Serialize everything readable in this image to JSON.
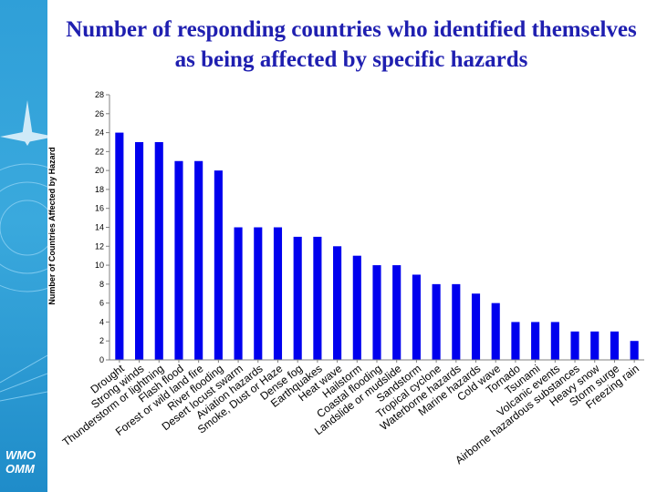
{
  "colors": {
    "bar": "#0000ee",
    "sidebar": "#2f9fd8",
    "title": "#1f1fb0"
  },
  "logo": {
    "line1": "WMO",
    "line2": "OMM"
  },
  "chart_data": {
    "type": "bar",
    "title": "Number of responding countries who identified themselves as being affected by specific hazards",
    "xlabel": "",
    "ylabel": "Number of Countries Affected by Hazard",
    "ylim": [
      0,
      28
    ],
    "yticks": [
      0,
      2,
      4,
      6,
      8,
      10,
      12,
      14,
      16,
      18,
      20,
      22,
      24,
      26,
      28
    ],
    "grid": false,
    "categories": [
      "Drought",
      "Strong winds",
      "Thunderstorm or lightning",
      "Flash flood",
      "Forest or wild land fire",
      "River flooding",
      "Desert locust swarm",
      "Aviation hazards",
      "Smoke, Dust or Haze",
      "Dense fog",
      "Earthquakes",
      "Heat wave",
      "Hailstorm",
      "Coastal flooding",
      "Landslide or mudslide",
      "Sandstorm",
      "Tropical cyclone",
      "Waterborne hazards",
      "Marine hazards",
      "Cold wave",
      "Tornado",
      "Tsunami",
      "Volcanic events",
      "Airborne hazardous substances",
      "Heavy snow",
      "Storm surge",
      "Freezing rain"
    ],
    "values": [
      24,
      23,
      23,
      21,
      21,
      20,
      14,
      14,
      14,
      13,
      13,
      12,
      11,
      10,
      10,
      9,
      8,
      8,
      7,
      6,
      4,
      4,
      4,
      3,
      3,
      3,
      2
    ]
  }
}
